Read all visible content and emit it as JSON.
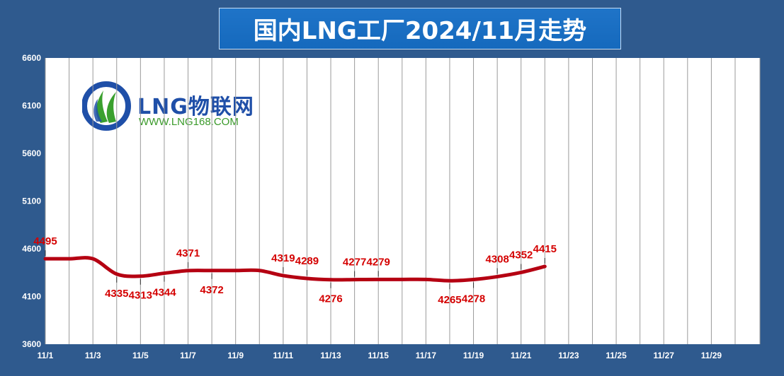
{
  "title": "国内LNG工厂2024/11月走势",
  "logo": {
    "name": "LNG物联网",
    "url": "WWW.LNG168.COM"
  },
  "colors": {
    "background": "#2f5a8e",
    "line": "#b50012",
    "label": "#d40000",
    "grid": "#a0a0a0"
  },
  "chart_data": {
    "type": "line",
    "title": "国内LNG工厂2024/11月走势",
    "xlabel": "",
    "ylabel": "",
    "ylim": [
      3600,
      6600
    ],
    "yticks": [
      3600,
      4100,
      4600,
      5100,
      5600,
      6100,
      6600
    ],
    "x_day_range": [
      1,
      30
    ],
    "xtick_labels": [
      "11/1",
      "11/3",
      "11/5",
      "11/7",
      "11/9",
      "11/11",
      "11/13",
      "11/15",
      "11/17",
      "11/19",
      "11/21",
      "11/23",
      "11/25",
      "11/27",
      "11/29"
    ],
    "grid": true,
    "series": [
      {
        "x": [
          "11/1",
          "11/2",
          "11/3",
          "11/4",
          "11/5",
          "11/6",
          "11/7",
          "11/8",
          "11/9",
          "11/10",
          "11/11",
          "11/12",
          "11/13",
          "11/14",
          "11/15",
          "11/16",
          "11/17",
          "11/18",
          "11/19",
          "11/20",
          "11/21",
          "11/22"
        ],
        "values": [
          4495,
          4495,
          4495,
          4335,
          4313,
          4344,
          4371,
          4372,
          4372,
          4372,
          4319,
          4289,
          4276,
          4277,
          4279,
          4279,
          4279,
          4265,
          4278,
          4308,
          4352,
          4415
        ]
      }
    ],
    "labels": [
      {
        "x": "11/1",
        "text": "4495",
        "pos": "above"
      },
      {
        "x": "11/4",
        "text": "4335",
        "pos": "below"
      },
      {
        "x": "11/5",
        "text": "4313",
        "pos": "below"
      },
      {
        "x": "11/6",
        "text": "4344",
        "pos": "below"
      },
      {
        "x": "11/7",
        "text": "4371",
        "pos": "above"
      },
      {
        "x": "11/8",
        "text": "4372",
        "pos": "below"
      },
      {
        "x": "11/11",
        "text": "4319",
        "pos": "above"
      },
      {
        "x": "11/12",
        "text": "4289",
        "pos": "above"
      },
      {
        "x": "11/13",
        "text": "4276",
        "pos": "below"
      },
      {
        "x": "11/14",
        "text": "4277",
        "pos": "above"
      },
      {
        "x": "11/15",
        "text": "4279",
        "pos": "above"
      },
      {
        "x": "11/18",
        "text": "4265",
        "pos": "below"
      },
      {
        "x": "11/19",
        "text": "4278",
        "pos": "below"
      },
      {
        "x": "11/20",
        "text": "4308",
        "pos": "above"
      },
      {
        "x": "11/21",
        "text": "4352",
        "pos": "above"
      },
      {
        "x": "11/22",
        "text": "4415",
        "pos": "above"
      }
    ]
  }
}
